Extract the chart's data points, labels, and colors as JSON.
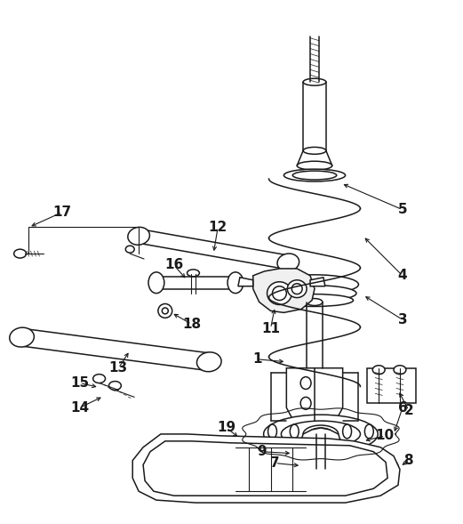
{
  "bg_color": "#ffffff",
  "line_color": "#1a1a1a",
  "fig_width": 5.21,
  "fig_height": 5.89,
  "dpi": 100
}
